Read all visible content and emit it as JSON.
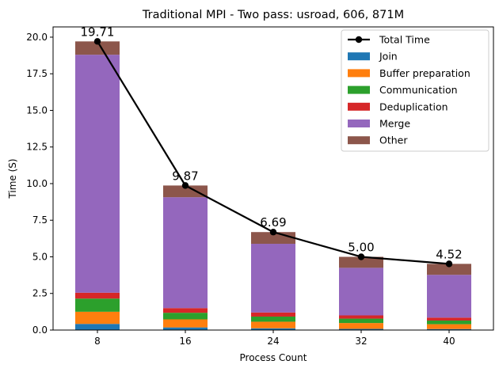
{
  "chart_data": {
    "type": "bar",
    "stacked": true,
    "title": "Traditional MPI - Two pass: usroad, 606, 871M",
    "xlabel": "Process Count",
    "ylabel": "Time (S)",
    "ylim": [
      0,
      20.7
    ],
    "yticks": [
      0.0,
      2.5,
      5.0,
      7.5,
      10.0,
      12.5,
      15.0,
      17.5,
      20.0
    ],
    "ytick_labels": [
      "0.0",
      "2.5",
      "5.0",
      "7.5",
      "10.0",
      "12.5",
      "15.0",
      "17.5",
      "20.0"
    ],
    "categories": [
      "8",
      "16",
      "24",
      "32",
      "40"
    ],
    "series": [
      {
        "name": "Join",
        "color": "#1f77b4",
        "values": [
          0.42,
          0.18,
          0.12,
          0.08,
          0.07
        ]
      },
      {
        "name": "Buffer preparation",
        "color": "#ff7f0e",
        "values": [
          0.83,
          0.55,
          0.45,
          0.4,
          0.33
        ]
      },
      {
        "name": "Communication",
        "color": "#2ca02c",
        "values": [
          0.9,
          0.45,
          0.35,
          0.3,
          0.25
        ]
      },
      {
        "name": "Deduplication",
        "color": "#d62728",
        "values": [
          0.4,
          0.32,
          0.28,
          0.22,
          0.2
        ]
      },
      {
        "name": "Merge",
        "color": "#9467bd",
        "values": [
          16.25,
          7.57,
          4.69,
          3.25,
          2.92
        ]
      },
      {
        "name": "Other",
        "color": "#8c564b",
        "values": [
          0.91,
          0.8,
          0.8,
          0.75,
          0.75
        ]
      }
    ],
    "line": {
      "name": "Total Time",
      "color": "#000000",
      "values": [
        19.71,
        9.87,
        6.69,
        5.0,
        4.52
      ],
      "labels": [
        "19.71",
        "9.87",
        "6.69",
        "5.00",
        "4.52"
      ]
    },
    "legend": {
      "position": "top-right",
      "entries": [
        "Total Time",
        "Join",
        "Buffer preparation",
        "Communication",
        "Deduplication",
        "Merge",
        "Other"
      ]
    }
  }
}
